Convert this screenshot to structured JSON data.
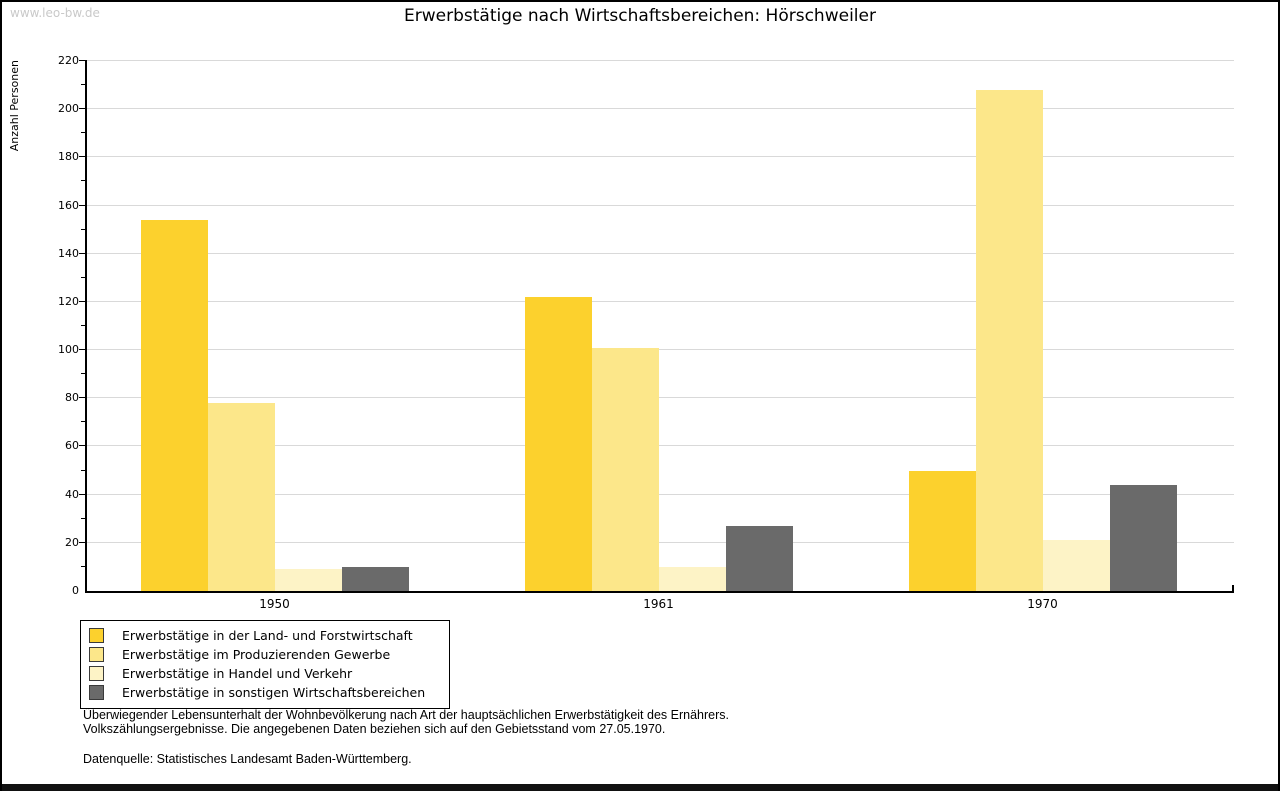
{
  "watermark": "www.leo-bw.de",
  "title": "Erwerbstätige nach Wirtschaftsbereichen: Hörschweiler",
  "chart_data": {
    "type": "bar",
    "title": "Erwerbstätige nach Wirtschaftsbereichen: Hörschweiler",
    "xlabel": "",
    "ylabel": "Anzahl Personen",
    "ylim": [
      0,
      220
    ],
    "ytick_major_step": 20,
    "ytick_minor_step": 10,
    "ytick_labels": [
      "0",
      "20",
      "40",
      "60",
      "80",
      "100",
      "120",
      "140",
      "160",
      "180",
      "200",
      "220"
    ],
    "grid": true,
    "legend_position": "bottom-left",
    "categories": [
      "1950",
      "1961",
      "1970"
    ],
    "series": [
      {
        "name": "Erwerbstätige in der Land- und Forstwirtschaft",
        "color": "#fcd12d",
        "values": [
          154,
          122,
          50
        ]
      },
      {
        "name": "Erwerbstätige im Produzierenden Gewerbe",
        "color": "#fce78a",
        "values": [
          78,
          101,
          208
        ]
      },
      {
        "name": "Erwerbstätige in Handel und Verkehr",
        "color": "#fdf3c6",
        "values": [
          9,
          10,
          21
        ]
      },
      {
        "name": "Erwerbstätige in sonstigen Wirtschaftsbereichen",
        "color": "#6a6a6a",
        "values": [
          10,
          27,
          44
        ]
      }
    ]
  },
  "footer": {
    "note_line1": "Überwiegender Lebensunterhalt der Wohnbevölkerung nach Art der hauptsächlichen Erwerbstätigkeit des Ernährers.",
    "note_line2": "Volkszählungsergebnisse. Die angegebenen Daten beziehen sich auf den Gebietsstand vom 27.05.1970.",
    "source": "Datenquelle: Statistisches Landesamt Baden-Württemberg."
  }
}
